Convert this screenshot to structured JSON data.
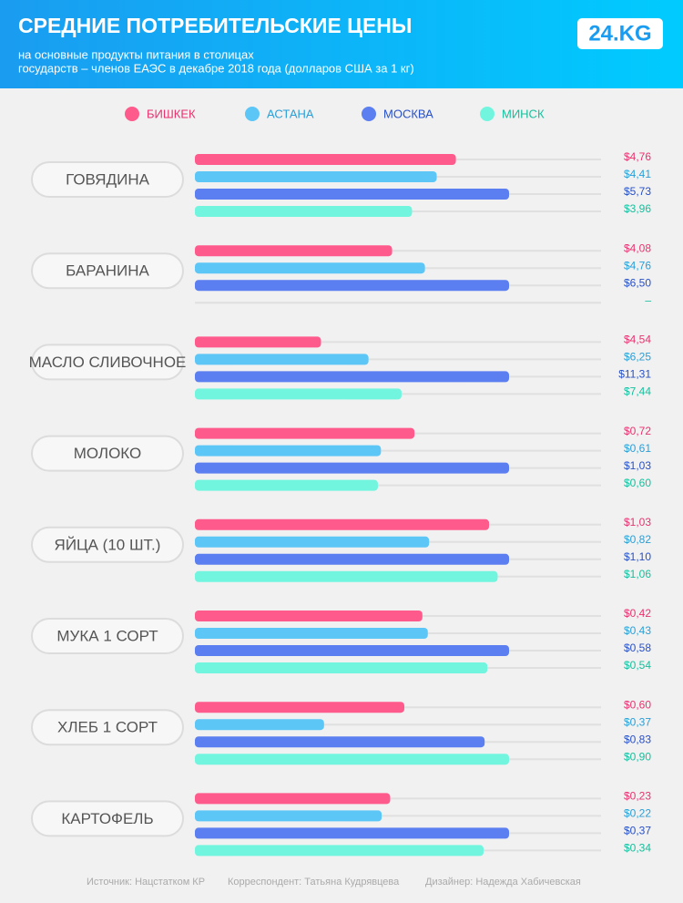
{
  "header": {
    "logo": "24.KG"
  },
  "chart_data": {
    "type": "bar",
    "title": "СРЕДНИЕ ПОТРЕБИТЕЛЬСКИЕ ЦЕНЫ",
    "subtitle": [
      "на основные продукты питания в столицах",
      "государств – членов ЕАЭС в декабре 2018 года (долларов США за 1 кг)"
    ],
    "categories": [
      "ГОВЯДИНА",
      "БАРАНИНА",
      "МАСЛО СЛИВОЧНОЕ",
      "МОЛОКО",
      "ЯЙЦА (10 ШТ.)",
      "МУКА 1 СОРТ",
      "ХЛЕБ 1 СОРТ",
      "КАРТОФЕЛЬ"
    ],
    "series": [
      {
        "name": "БИШКЕК",
        "color": "#ff5a8c",
        "values": [
          4.76,
          4.08,
          4.54,
          0.72,
          1.03,
          0.42,
          0.6,
          0.23
        ],
        "value_labels": [
          "$4,76",
          "$4,08",
          "$4,54",
          "$0,72",
          "$1,03",
          "$0,42",
          "$0,60",
          "$0,23"
        ]
      },
      {
        "name": "АСТАНА",
        "color": "#5cc6f7",
        "values": [
          4.41,
          4.76,
          6.25,
          0.61,
          0.82,
          0.43,
          0.37,
          0.22
        ],
        "value_labels": [
          "$4,41",
          "$4,76",
          "$6,25",
          "$0,61",
          "$0,82",
          "$0,43",
          "$0,37",
          "$0,22"
        ]
      },
      {
        "name": "МОСКВА",
        "color": "#5b7ef0",
        "values": [
          5.73,
          6.5,
          11.31,
          1.03,
          1.1,
          0.58,
          0.83,
          0.37
        ],
        "value_labels": [
          "$5,73",
          "$6,50",
          "$11,31",
          "$1,03",
          "$1,10",
          "$0,58",
          "$0,83",
          "$0,37"
        ]
      },
      {
        "name": "МИНСК",
        "color": "#72f5df",
        "values": [
          3.96,
          null,
          7.44,
          0.6,
          1.06,
          0.54,
          0.9,
          0.34
        ],
        "value_labels": [
          "$3,96",
          "–",
          "$7,44",
          "$0,60",
          "$1,06",
          "$0,54",
          "$0,90",
          "$0,34"
        ]
      }
    ]
  },
  "footer": [
    "Источник: Нацстатком КР",
    "Корреспондент: Татьяна Кудрявцева",
    "Дизайнер: Надежда Хабичевская"
  ]
}
